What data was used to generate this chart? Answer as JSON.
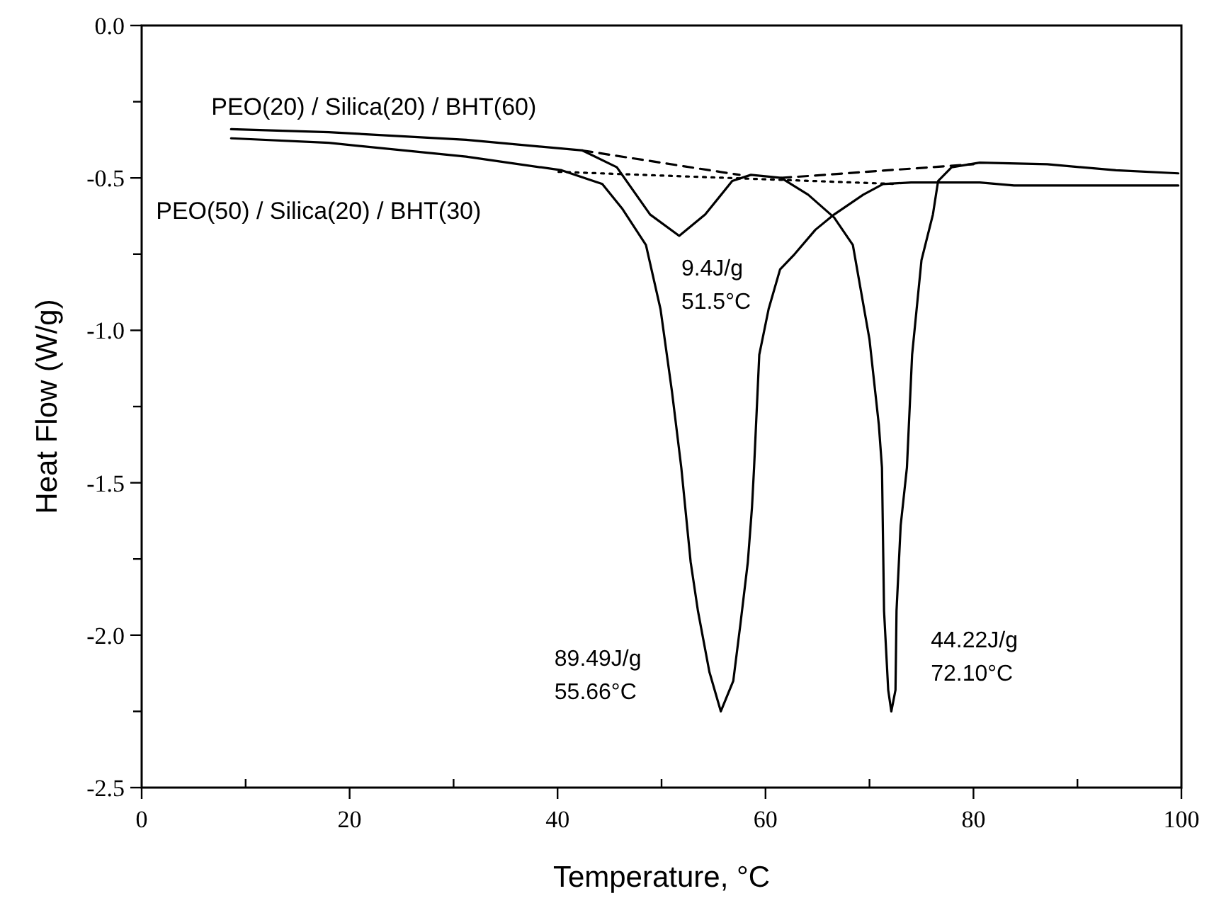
{
  "chart_data": {
    "type": "line",
    "xlabel": "Temperature, °C",
    "ylabel": "Heat Flow (W/g)",
    "xlim": [
      0,
      100
    ],
    "ylim": [
      -2.5,
      0
    ],
    "xticks": [
      0,
      {
        "value": 10,
        "label": null
      },
      20,
      {
        "value": 30,
        "label": null
      },
      40,
      {
        "value": 50,
        "label": null
      },
      60,
      {
        "value": 70,
        "label": null
      },
      80,
      {
        "value": 90,
        "label": null
      },
      100
    ],
    "yticks": [
      {
        "value": 0,
        "label": "0.0"
      },
      {
        "value": -0.25,
        "label": null
      },
      {
        "value": -0.5,
        "label": "-0.5"
      },
      {
        "value": -0.75,
        "label": null
      },
      {
        "value": -1,
        "label": "-1.0"
      },
      {
        "value": -1.25,
        "label": null
      },
      {
        "value": -1.5,
        "label": "-1.5"
      },
      {
        "value": -1.75,
        "label": null
      },
      {
        "value": -2,
        "label": "-2.0"
      },
      {
        "value": -2.25,
        "label": null
      },
      {
        "value": -2.5,
        "label": "-2.5"
      }
    ],
    "grid": false,
    "marker": "none",
    "series": [
      {
        "name": "PEO(20) / Silica(20) / BHT(60)",
        "color": "#000000",
        "line_style": "solid",
        "x": [
          8.6,
          18,
          31.2,
          42.4,
          45.7,
          48.9,
          51.7,
          54.2,
          56.8,
          58.6,
          61.5,
          64.1,
          66.6,
          68.4,
          70,
          70.9,
          71.2,
          71.4,
          71.8,
          72.1,
          72.5,
          72.6,
          73,
          73.6,
          74.1,
          75,
          76.1,
          76.6,
          77.9,
          80.6,
          87.1,
          93.7,
          99.7
        ],
        "values": [
          -0.34,
          -0.35,
          -0.375,
          -0.41,
          -0.465,
          -0.62,
          -0.69,
          -0.62,
          -0.51,
          -0.49,
          -0.5,
          -0.555,
          -0.63,
          -0.72,
          -1.03,
          -1.31,
          -1.45,
          -1.92,
          -2.18,
          -2.25,
          -2.18,
          -1.92,
          -1.64,
          -1.45,
          -1.08,
          -0.77,
          -0.62,
          -0.51,
          -0.465,
          -0.45,
          -0.455,
          -0.475,
          -0.485
        ]
      },
      {
        "name": "PEO(50) / Silica(20) / BHT(30)",
        "color": "#000000",
        "line_style": "solid",
        "x": [
          8.6,
          18,
          31.2,
          40.4,
          44.3,
          46.2,
          48.5,
          49.9,
          51,
          51.9,
          52.8,
          53.5,
          54.6,
          55.7,
          56.9,
          57.6,
          58.3,
          58.7,
          58.9,
          59.4,
          60.3,
          61.4,
          62.8,
          64.8,
          66.6,
          69.4,
          71.3,
          74,
          80.6,
          83.9,
          99.7
        ],
        "values": [
          -0.37,
          -0.385,
          -0.43,
          -0.475,
          -0.52,
          -0.6,
          -0.72,
          -0.93,
          -1.2,
          -1.45,
          -1.76,
          -1.92,
          -2.12,
          -2.25,
          -2.15,
          -1.96,
          -1.76,
          -1.58,
          -1.45,
          -1.08,
          -0.93,
          -0.8,
          -0.75,
          -0.67,
          -0.62,
          -0.555,
          -0.52,
          -0.515,
          -0.515,
          -0.525,
          -0.525
        ]
      },
      {
        "color": "#000000",
        "line_style": "dashed",
        "x": [
          42.4,
          57.5
        ],
        "values": [
          -0.41,
          -0.49
        ]
      },
      {
        "color": "#000000",
        "line_style": "dashed",
        "x": [
          61.5,
          80
        ],
        "values": [
          -0.5,
          -0.455
        ]
      },
      {
        "color": "#000000",
        "line_style": "dotted",
        "x": [
          40.1,
          72.6
        ],
        "values": [
          -0.48,
          -0.52
        ]
      }
    ],
    "annotations": [
      "9.4J/g",
      "51.5°C",
      "89.49J/g",
      "55.66°C",
      "44.22J/g",
      "72.10°C"
    ]
  }
}
